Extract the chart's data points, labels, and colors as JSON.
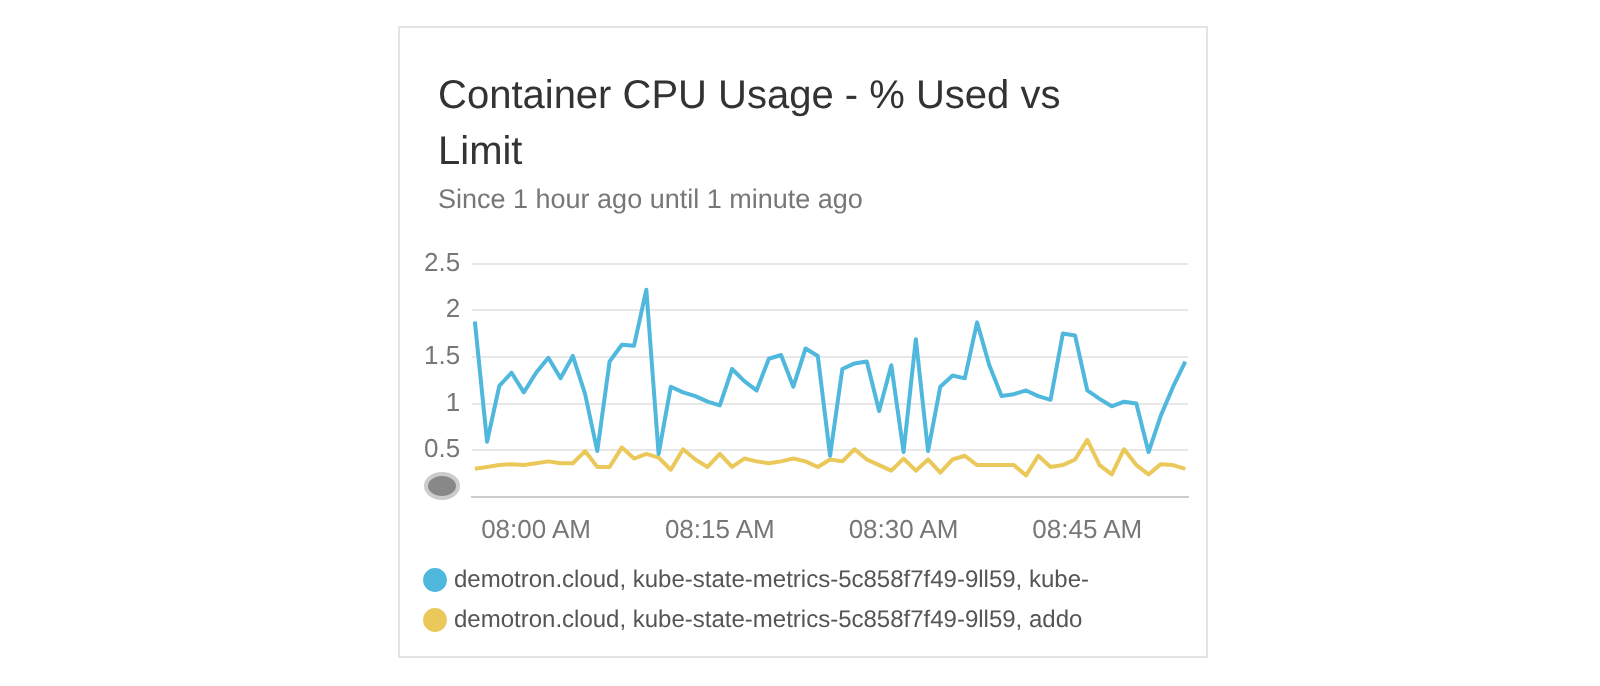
{
  "chart_data": {
    "type": "line",
    "title": "Container CPU Usage - % Used vs Limit",
    "subtitle": "Since 1 hour ago until 1 minute ago",
    "x": [
      7.9167,
      7.9333,
      7.95,
      7.9667,
      7.9833,
      8,
      8.0167,
      8.0333,
      8.05,
      8.0667,
      8.0833,
      8.1,
      8.1167,
      8.1333,
      8.15,
      8.1667,
      8.1833,
      8.2,
      8.2167,
      8.2333,
      8.25,
      8.2667,
      8.2833,
      8.3,
      8.3167,
      8.3333,
      8.35,
      8.3667,
      8.3833,
      8.4,
      8.4167,
      8.4333,
      8.45,
      8.4667,
      8.4833,
      8.5,
      8.5167,
      8.5333,
      8.55,
      8.5667,
      8.5833,
      8.6,
      8.6167,
      8.6333,
      8.65,
      8.6667,
      8.6833,
      8.7,
      8.7167,
      8.7333,
      8.75,
      8.7667,
      8.7833,
      8.8,
      8.8167,
      8.8333,
      8.85,
      8.8667,
      8.8833
    ],
    "series": [
      {
        "name": "demotron.cloud, kube-state-metrics-5c858f7f49-9ll59, kube-",
        "color": "#4fb8dc",
        "values": [
          1.88,
          0.59,
          1.19,
          1.33,
          1.12,
          1.33,
          1.49,
          1.27,
          1.51,
          1.1,
          0.49,
          1.45,
          1.63,
          1.62,
          2.22,
          0.46,
          1.18,
          1.12,
          1.08,
          1.02,
          0.98,
          1.37,
          1.24,
          1.14,
          1.48,
          1.52,
          1.18,
          1.59,
          1.51,
          0.44,
          1.37,
          1.43,
          1.45,
          0.92,
          1.41,
          0.48,
          1.69,
          0.49,
          1.18,
          1.3,
          1.27,
          1.87,
          1.41,
          1.08,
          1.1,
          1.14,
          1.08,
          1.04,
          1.75,
          1.73,
          1.14,
          1.05,
          0.97,
          1.02,
          1,
          0.48,
          0.87,
          1.18,
          1.45
        ]
      },
      {
        "name": "demotron.cloud, kube-state-metrics-5c858f7f49-9ll59, addo",
        "color": "#ebc85a",
        "values": [
          0.3,
          0.32,
          0.34,
          0.35,
          0.34,
          0.36,
          0.38,
          0.36,
          0.36,
          0.49,
          0.32,
          0.32,
          0.53,
          0.41,
          0.46,
          0.42,
          0.29,
          0.51,
          0.4,
          0.32,
          0.46,
          0.32,
          0.41,
          0.38,
          0.36,
          0.38,
          0.41,
          0.38,
          0.32,
          0.4,
          0.38,
          0.51,
          0.4,
          0.34,
          0.28,
          0.41,
          0.28,
          0.4,
          0.26,
          0.4,
          0.44,
          0.34,
          0.34,
          0.34,
          0.34,
          0.23,
          0.44,
          0.32,
          0.34,
          0.4,
          0.61,
          0.34,
          0.24,
          0.51,
          0.34,
          0.24,
          0.35,
          0.34,
          0.3
        ]
      }
    ],
    "xlim": [
      7.913,
      8.887
    ],
    "xticks": [
      {
        "value": 8,
        "label": "08:00 AM"
      },
      {
        "value": 8.25,
        "label": "08:15 AM"
      },
      {
        "value": 8.5,
        "label": "08:30 AM"
      },
      {
        "value": 8.75,
        "label": "08:45 AM"
      }
    ],
    "ylim": [
      0,
      2.5
    ],
    "yticks": [
      {
        "value": 0,
        "label": null
      },
      0.5,
      1,
      1.5,
      2,
      2.5
    ],
    "grid": "y",
    "legend": "bottom",
    "marker": "none",
    "line_style": "solid"
  }
}
